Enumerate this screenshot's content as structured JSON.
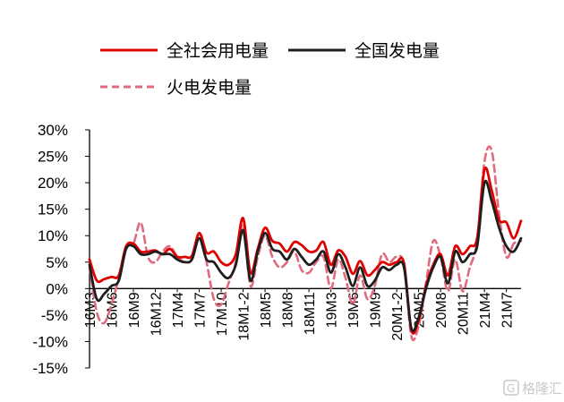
{
  "chart_data": {
    "type": "line",
    "x_labels": [
      "16M3",
      "16M6",
      "16M9",
      "16M12",
      "17M4",
      "17M7",
      "17M10",
      "18M1-2",
      "18M5",
      "18M8",
      "18M11",
      "19M3",
      "19M6",
      "19M9",
      "20M1-2",
      "20M5",
      "20M8",
      "20M11",
      "21M4",
      "21M7"
    ],
    "y_ticks": [
      "30%",
      "25%",
      "20%",
      "15%",
      "10%",
      "5%",
      "0%",
      "-5%",
      "-10%",
      "-15%"
    ],
    "ylim": [
      -15,
      30
    ],
    "legend_position": "top",
    "series": [
      {
        "name": "全社会用电量",
        "color": "#e00000",
        "style": "solid",
        "values": [
          5.5,
          1.5,
          1.8,
          2.2,
          2.5,
          8.0,
          8.5,
          7.0,
          7.0,
          7.2,
          6.5,
          7.5,
          6.0,
          6.0,
          6.2,
          10.5,
          6.8,
          7.0,
          5.0,
          4.5,
          6.5,
          13.3,
          3.0,
          7.5,
          11.5,
          9.0,
          8.5,
          7.0,
          8.8,
          8.2,
          7.0,
          7.2,
          8.8,
          4.5,
          7.2,
          6.0,
          2.8,
          5.2,
          2.5,
          3.5,
          5.0,
          4.5,
          5.0,
          4.8,
          -7.8,
          -6.0,
          0.5,
          4.5,
          6.5,
          2.5,
          8.0,
          6.5,
          8.0,
          9.5,
          22.5,
          18.5,
          13.0,
          12.5,
          9.5,
          12.8
        ]
      },
      {
        "name": "全国发电量",
        "color": "#1e1e1e",
        "style": "solid",
        "values": [
          4.5,
          -2.0,
          -1.0,
          0.5,
          1.5,
          7.5,
          8.0,
          6.5,
          6.5,
          7.0,
          6.5,
          6.5,
          5.5,
          5.0,
          5.5,
          9.5,
          5.5,
          5.0,
          3.0,
          2.0,
          4.5,
          11.0,
          1.5,
          7.0,
          10.5,
          7.5,
          7.0,
          5.5,
          7.5,
          6.0,
          4.5,
          5.5,
          7.0,
          3.0,
          6.5,
          4.0,
          0.5,
          4.0,
          0.5,
          1.5,
          4.0,
          3.5,
          4.5,
          4.0,
          -7.5,
          -5.5,
          0.0,
          4.0,
          6.0,
          1.0,
          7.0,
          5.0,
          6.5,
          8.0,
          20.0,
          16.5,
          11.5,
          8.0,
          7.0,
          9.5
        ]
      },
      {
        "name": "火电发电量",
        "color": "#e06a7e",
        "style": "dashed",
        "values": [
          4.0,
          -4.5,
          -6.5,
          -3.0,
          2.0,
          8.0,
          8.5,
          12.5,
          6.0,
          5.0,
          7.0,
          8.0,
          6.0,
          5.0,
          5.5,
          10.5,
          5.0,
          -2.0,
          -3.0,
          1.0,
          5.0,
          12.0,
          0.5,
          6.0,
          10.0,
          6.0,
          4.0,
          5.0,
          7.0,
          3.5,
          3.0,
          5.0,
          6.0,
          0.0,
          5.5,
          2.0,
          -3.0,
          2.5,
          -2.0,
          0.5,
          6.5,
          5.0,
          6.0,
          4.5,
          -9.0,
          -7.0,
          1.0,
          9.0,
          6.0,
          -0.5,
          5.5,
          -0.5,
          4.0,
          9.0,
          24.0,
          26.0,
          14.0,
          6.0,
          8.5,
          9.0
        ]
      }
    ]
  },
  "watermark": {
    "text": "格隆汇",
    "icon": "g-logo-icon"
  }
}
